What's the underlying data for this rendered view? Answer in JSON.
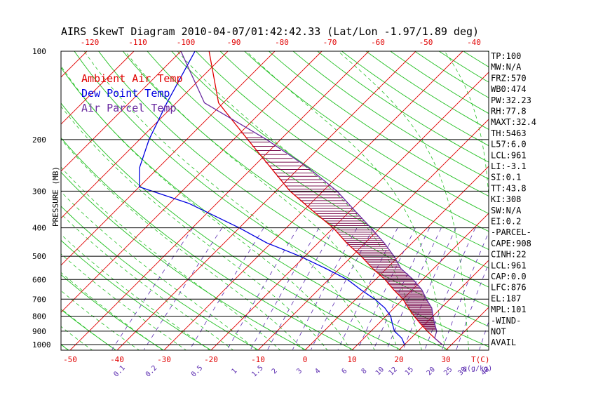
{
  "chart_data": {
    "type": "line",
    "title": "AIRS SkewT Diagram 2010-04-07/01:42:42.33 (Lat/Lon -1.97/1.89 deg)",
    "ylabel": "PRESSURE (MB)",
    "pressure_ticks": [
      100,
      200,
      300,
      400,
      500,
      600,
      700,
      800,
      900,
      1000
    ],
    "temp_ticks_top": [
      -120,
      -110,
      -100,
      -90,
      -80,
      -70,
      -60,
      -50,
      -40
    ],
    "temp_ticks_bottom": [
      -50,
      -40,
      -30,
      -20,
      -10,
      0,
      10,
      20,
      30
    ],
    "temp_unit_label": "T(C)",
    "mixing_ratio_ticks": [
      "0.1",
      "0.2",
      "0.5",
      "1",
      "1.5",
      "2",
      "3",
      "4",
      "6",
      "8",
      "10",
      "12",
      "15",
      "20",
      "25",
      "30",
      "40"
    ],
    "mixing_ratio_unit_label": "q(g/kg)",
    "legend": [
      {
        "label": "Ambient Air Temp",
        "color": "#e00000"
      },
      {
        "label": "Dew Point Temp",
        "color": "#0000e0"
      },
      {
        "label": "Air Parcel Temp",
        "color": "#6a2aa0"
      }
    ],
    "series": [
      {
        "name": "Ambient Air Temp",
        "color": "#e00000",
        "points": [
          [
            100,
            -84
          ],
          [
            150,
            -71
          ],
          [
            200,
            -57
          ],
          [
            250,
            -46
          ],
          [
            300,
            -37
          ],
          [
            350,
            -28
          ],
          [
            400,
            -20
          ],
          [
            450,
            -14
          ],
          [
            500,
            -8
          ],
          [
            550,
            -3
          ],
          [
            600,
            2
          ],
          [
            650,
            6
          ],
          [
            700,
            10
          ],
          [
            750,
            13
          ],
          [
            800,
            16
          ],
          [
            850,
            19
          ],
          [
            900,
            22
          ],
          [
            950,
            25
          ],
          [
            1000,
            28
          ]
        ]
      },
      {
        "name": "Dew Point Temp",
        "color": "#0000e0",
        "points": [
          [
            100,
            -87
          ],
          [
            150,
            -82
          ],
          [
            200,
            -78
          ],
          [
            250,
            -74
          ],
          [
            290,
            -70
          ],
          [
            330,
            -56
          ],
          [
            400,
            -40
          ],
          [
            450,
            -31
          ],
          [
            500,
            -21
          ],
          [
            550,
            -13
          ],
          [
            600,
            -6
          ],
          [
            650,
            -1
          ],
          [
            700,
            4
          ],
          [
            750,
            8
          ],
          [
            800,
            11
          ],
          [
            850,
            13
          ],
          [
            900,
            15
          ],
          [
            950,
            18
          ],
          [
            1000,
            20
          ]
        ]
      },
      {
        "name": "Air Parcel Temp",
        "color": "#6a2aa0",
        "points": [
          [
            100,
            -90
          ],
          [
            150,
            -74
          ],
          [
            200,
            -53
          ],
          [
            250,
            -38
          ],
          [
            300,
            -27
          ],
          [
            350,
            -19
          ],
          [
            400,
            -12
          ],
          [
            450,
            -6
          ],
          [
            500,
            -1
          ],
          [
            550,
            3
          ],
          [
            600,
            8
          ],
          [
            650,
            12
          ],
          [
            700,
            15
          ],
          [
            750,
            18
          ],
          [
            800,
            20
          ],
          [
            850,
            22
          ],
          [
            900,
            24
          ],
          [
            950,
            25
          ],
          [
            1000,
            28
          ]
        ]
      }
    ],
    "grid": true
  },
  "stats": [
    "TP:100",
    "MW:N/A",
    "FRZ:570",
    "WB0:474",
    "PW:32.23",
    "RH:77.8",
    "MAXT:32.4",
    "TH:5463",
    "L57:6.0",
    "LCL:961",
    "LI:-3.1",
    "SI:0.1",
    "TT:43.8",
    "KI:308",
    "SW:N/A",
    "EI:0.2",
    "-PARCEL-",
    "CAPE:908",
    "CINH:22",
    "LCL:961",
    "CAP:0.0",
    "LFC:876",
    "EL:187",
    "MPL:101",
    "-WIND-",
    "NOT",
    "AVAIL"
  ]
}
